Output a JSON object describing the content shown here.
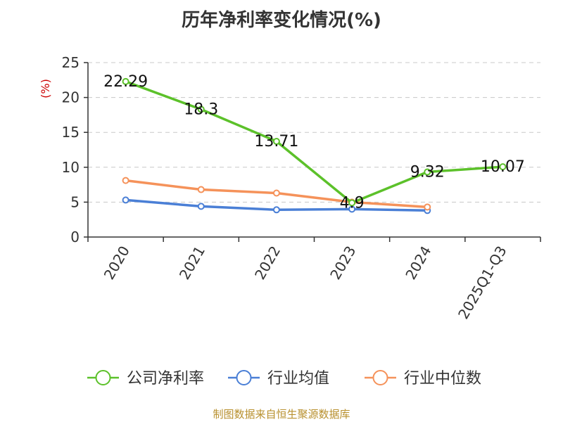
{
  "chart_data": {
    "type": "line",
    "title": "历年净利率变化情况(%)",
    "ylabel": "(%)",
    "xlabel": "",
    "categories": [
      "2020",
      "2021",
      "2022",
      "2023",
      "2024",
      "2025Q1-Q3"
    ],
    "ylim": [
      0,
      25
    ],
    "yticks": [
      0,
      5,
      10,
      15,
      20,
      25
    ],
    "grid": true,
    "legend_position": "bottom",
    "series": [
      {
        "name": "公司净利率",
        "color": "#5cc12a",
        "values": [
          22.29,
          18.3,
          13.71,
          4.9,
          9.32,
          10.07
        ],
        "show_labels": true
      },
      {
        "name": "行业均值",
        "color": "#4a7fd6",
        "values": [
          5.3,
          4.4,
          3.9,
          4.0,
          3.8,
          null
        ],
        "show_labels": false
      },
      {
        "name": "行业中位数",
        "color": "#f5925a",
        "values": [
          8.1,
          6.8,
          6.3,
          5.0,
          4.3,
          null
        ],
        "show_labels": false
      }
    ]
  },
  "source": "制图数据来自恒生聚源数据库"
}
